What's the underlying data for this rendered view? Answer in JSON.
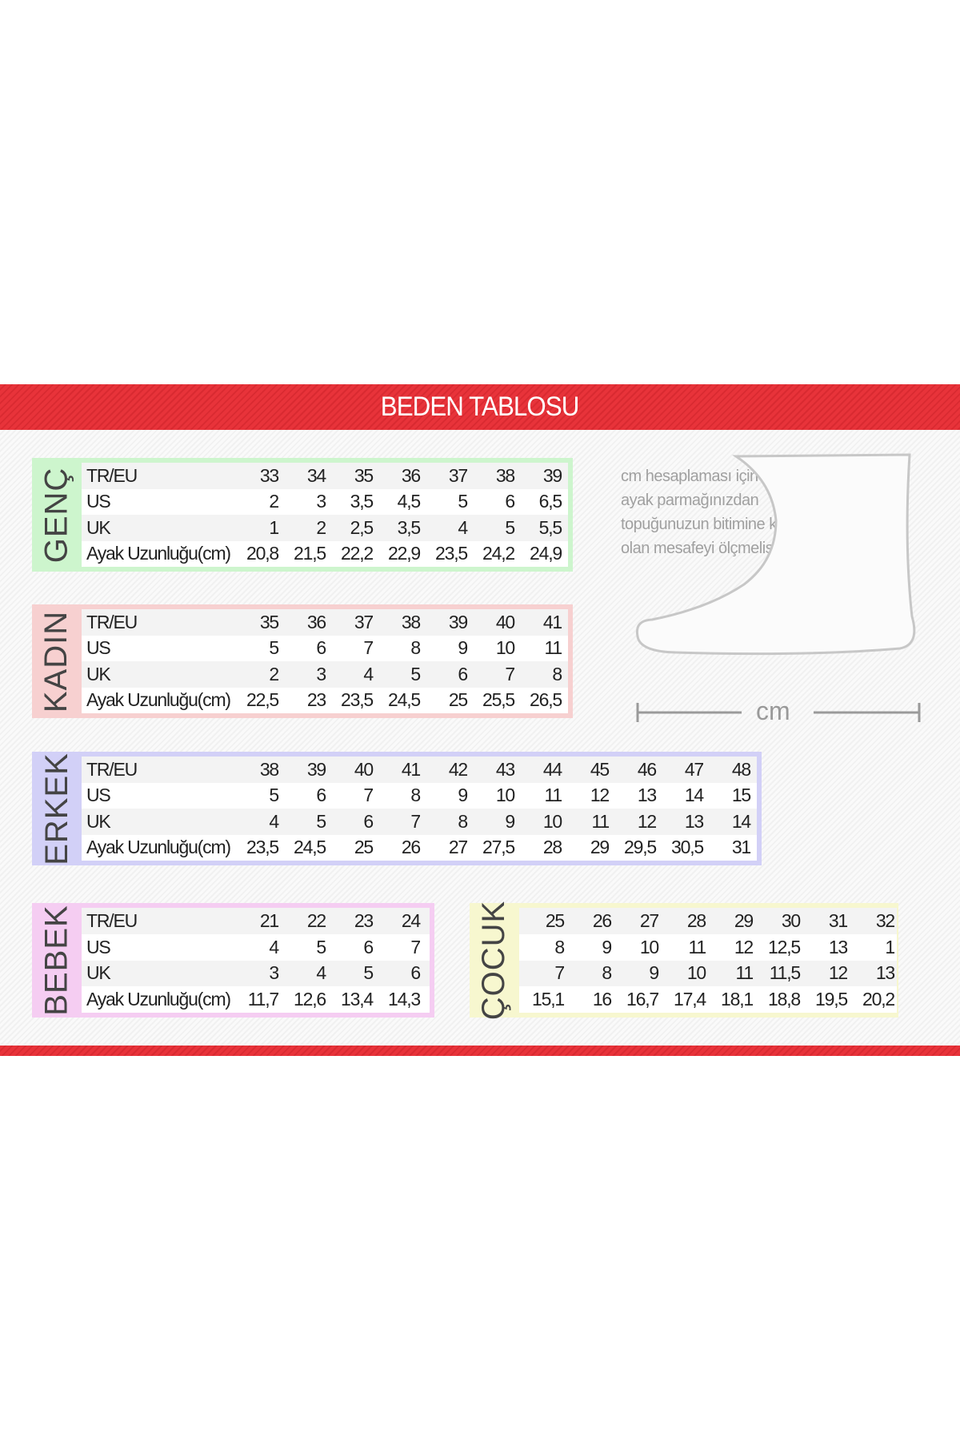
{
  "title": "BEDEN TABLOSU",
  "note": "cm hesaplaması için en uzun ayak parmağınızdan topuğunuzun bitimine kadar olan mesafeyi ölçmelisiniz.",
  "measure_label": "cm",
  "row_labels": [
    "TR/EU",
    "US",
    "UK",
    "Ayak Uzunluğu(cm)"
  ],
  "colors": {
    "brand_red": "#e8333a",
    "genc": "#cdf5cd",
    "kadin": "#f7d0d0",
    "erkek": "#d2d0f7",
    "bebek": "#f5cdf2",
    "cocuk": "#f7f7cf"
  },
  "tables": [
    {
      "id": "genc",
      "label": "GENÇ",
      "show_row_labels": true,
      "rows": [
        [
          "33",
          "34",
          "35",
          "36",
          "37",
          "38",
          "39"
        ],
        [
          "2",
          "3",
          "3,5",
          "4,5",
          "5",
          "6",
          "6,5"
        ],
        [
          "1",
          "2",
          "2,5",
          "3,5",
          "4",
          "5",
          "5,5"
        ],
        [
          "20,8",
          "21,5",
          "22,2",
          "22,9",
          "23,5",
          "24,2",
          "24,9"
        ]
      ]
    },
    {
      "id": "kadin",
      "label": "KADIN",
      "show_row_labels": true,
      "rows": [
        [
          "35",
          "36",
          "37",
          "38",
          "39",
          "40",
          "41"
        ],
        [
          "5",
          "6",
          "7",
          "8",
          "9",
          "10",
          "11"
        ],
        [
          "2",
          "3",
          "4",
          "5",
          "6",
          "7",
          "8"
        ],
        [
          "22,5",
          "23",
          "23,5",
          "24,5",
          "25",
          "25,5",
          "26,5"
        ]
      ]
    },
    {
      "id": "erkek",
      "label": "ERKEK",
      "show_row_labels": true,
      "rows": [
        [
          "38",
          "39",
          "40",
          "41",
          "42",
          "43",
          "44",
          "45",
          "46",
          "47",
          "48"
        ],
        [
          "5",
          "6",
          "7",
          "8",
          "9",
          "10",
          "11",
          "12",
          "13",
          "14",
          "15"
        ],
        [
          "4",
          "5",
          "6",
          "7",
          "8",
          "9",
          "10",
          "11",
          "12",
          "13",
          "14"
        ],
        [
          "23,5",
          "24,5",
          "25",
          "26",
          "27",
          "27,5",
          "28",
          "29",
          "29,5",
          "30,5",
          "31"
        ]
      ]
    },
    {
      "id": "bebek",
      "label": "BEBEK",
      "show_row_labels": true,
      "rows": [
        [
          "21",
          "22",
          "23",
          "24"
        ],
        [
          "4",
          "5",
          "6",
          "7"
        ],
        [
          "3",
          "4",
          "5",
          "6"
        ],
        [
          "11,7",
          "12,6",
          "13,4",
          "14,3"
        ]
      ]
    },
    {
      "id": "cocuk",
      "label": "ÇOCUK",
      "show_row_labels": false,
      "rows": [
        [
          "25",
          "26",
          "27",
          "28",
          "29",
          "30",
          "31",
          "32"
        ],
        [
          "8",
          "9",
          "10",
          "11",
          "12",
          "12,5",
          "13",
          "1"
        ],
        [
          "7",
          "8",
          "9",
          "10",
          "11",
          "11,5",
          "12",
          "13"
        ],
        [
          "15,1",
          "16",
          "16,7",
          "17,4",
          "18,1",
          "18,8",
          "19,5",
          "20,2"
        ]
      ]
    }
  ]
}
